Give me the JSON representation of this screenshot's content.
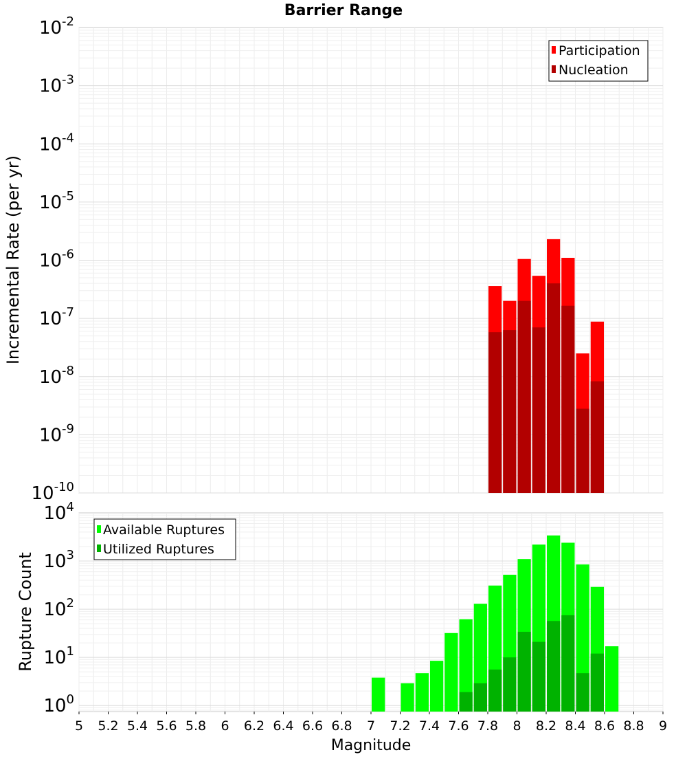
{
  "chart_data": [
    {
      "type": "bar",
      "scale": "log",
      "title": "Barrier Range",
      "xlabel": "",
      "ylabel": "Incremental Rate (per yr)",
      "xlim": [
        5,
        9
      ],
      "ylim": [
        1e-10,
        0.01
      ],
      "bin_width": 0.1,
      "y_ticks": [
        {
          "base": "10",
          "exp": "-2"
        },
        {
          "base": "10",
          "exp": "-3"
        },
        {
          "base": "10",
          "exp": "-4"
        },
        {
          "base": "10",
          "exp": "-5"
        },
        {
          "base": "10",
          "exp": "-6"
        },
        {
          "base": "10",
          "exp": "-7"
        },
        {
          "base": "10",
          "exp": "-8"
        },
        {
          "base": "10",
          "exp": "-9"
        },
        {
          "base": "10",
          "exp": "-10"
        }
      ],
      "legend": {
        "placement": "top-right",
        "entries": [
          "Participation",
          "Nucleation"
        ]
      },
      "series": [
        {
          "name": "Participation",
          "color": "#ff0000",
          "x": [
            7.85,
            7.95,
            8.05,
            8.15,
            8.25,
            8.35,
            8.45,
            8.55
          ],
          "values": [
            3.6e-07,
            2e-07,
            1.05e-06,
            5.4e-07,
            2.3e-06,
            1.1e-06,
            2.5e-08,
            8.8e-08
          ]
        },
        {
          "name": "Nucleation",
          "color": "#b20000",
          "x": [
            7.85,
            7.95,
            8.05,
            8.15,
            8.25,
            8.35,
            8.45,
            8.55
          ],
          "values": [
            5.8e-08,
            6.3e-08,
            2e-07,
            7e-08,
            4e-07,
            1.65e-07,
            2.8e-09,
            8.3e-09
          ]
        }
      ]
    },
    {
      "type": "bar",
      "scale": "log",
      "title": "",
      "xlabel": "Magnitude",
      "ylabel": "Rupture Count",
      "xlim": [
        5,
        9
      ],
      "ylim": [
        0.75,
        10000
      ],
      "bin_width": 0.1,
      "x_ticks": [
        "5",
        "5.2",
        "5.4",
        "5.6",
        "5.8",
        "6",
        "6.2",
        "6.4",
        "6.6",
        "6.8",
        "7",
        "7.2",
        "7.4",
        "7.6",
        "7.8",
        "8",
        "8.2",
        "8.4",
        "8.6",
        "8.8",
        "9"
      ],
      "y_ticks": [
        {
          "base": "10",
          "exp": "4"
        },
        {
          "base": "10",
          "exp": "3"
        },
        {
          "base": "10",
          "exp": "2"
        },
        {
          "base": "10",
          "exp": "1"
        },
        {
          "base": "10",
          "exp": "0"
        }
      ],
      "legend": {
        "placement": "top-left",
        "entries": [
          "Available Ruptures",
          "Utilized Ruptures"
        ]
      },
      "series": [
        {
          "name": "Available Ruptures",
          "color": "#00ff00",
          "x": [
            7.05,
            7.25,
            7.35,
            7.45,
            7.55,
            7.65,
            7.75,
            7.85,
            7.95,
            8.05,
            8.15,
            8.25,
            8.35,
            8.45,
            8.55,
            8.65
          ],
          "values": [
            3.8,
            2.9,
            4.7,
            8.5,
            32,
            62,
            130,
            310,
            520,
            1100,
            2200,
            3400,
            2400,
            850,
            290,
            17
          ]
        },
        {
          "name": "Utilized Ruptures",
          "color": "#00b200",
          "x": [
            7.65,
            7.75,
            7.85,
            7.95,
            8.05,
            8.15,
            8.25,
            8.35,
            8.45,
            8.55
          ],
          "values": [
            1.9,
            2.9,
            5.6,
            10,
            34,
            21,
            57,
            75,
            4.7,
            12
          ]
        }
      ]
    }
  ]
}
